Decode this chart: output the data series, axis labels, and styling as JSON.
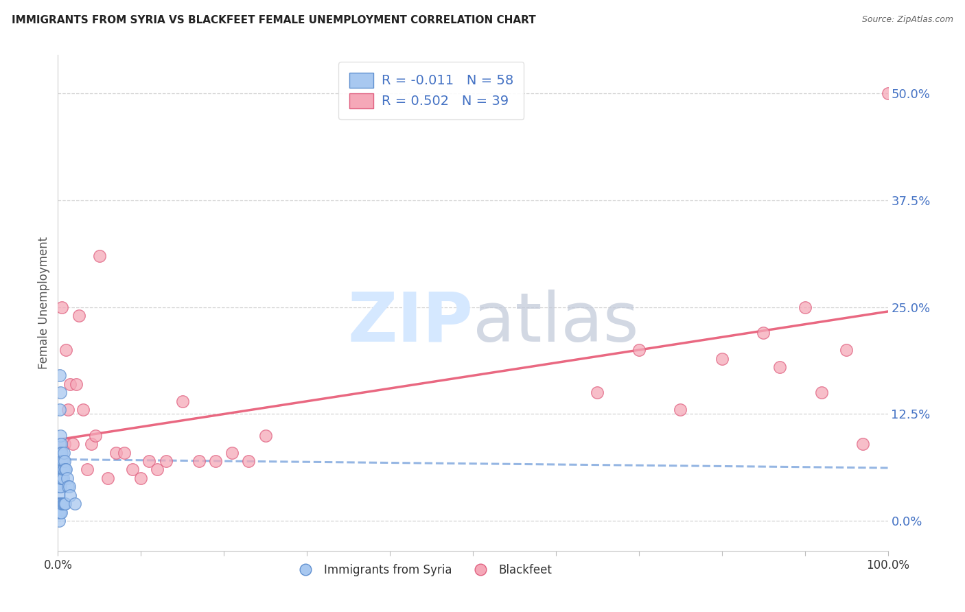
{
  "title": "IMMIGRANTS FROM SYRIA VS BLACKFEET FEMALE UNEMPLOYMENT CORRELATION CHART",
  "source": "Source: ZipAtlas.com",
  "ylabel": "Female Unemployment",
  "ytick_labels": [
    "0.0%",
    "12.5%",
    "25.0%",
    "37.5%",
    "50.0%"
  ],
  "ytick_values": [
    0.0,
    0.125,
    0.25,
    0.375,
    0.5
  ],
  "xlim": [
    0.0,
    1.0
  ],
  "ylim": [
    -0.035,
    0.545
  ],
  "legend_label1": "Immigrants from Syria",
  "legend_label2": "Blackfeet",
  "color_blue": "#A8C8F0",
  "color_pink": "#F5A8B8",
  "color_blue_edge": "#6090D0",
  "color_pink_edge": "#E06080",
  "color_blue_line": "#8AAEE0",
  "color_pink_line": "#E8607A",
  "background_color": "#FFFFFF",
  "watermark_color": "#D5E8FF",
  "syria_R": -0.011,
  "syria_N": 58,
  "blackfeet_R": 0.502,
  "blackfeet_N": 39,
  "syria_x": [
    0.001,
    0.001,
    0.001,
    0.001,
    0.001,
    0.001,
    0.001,
    0.001,
    0.001,
    0.001,
    0.002,
    0.002,
    0.002,
    0.002,
    0.002,
    0.002,
    0.002,
    0.002,
    0.002,
    0.002,
    0.003,
    0.003,
    0.003,
    0.003,
    0.003,
    0.003,
    0.003,
    0.003,
    0.003,
    0.004,
    0.004,
    0.004,
    0.004,
    0.004,
    0.004,
    0.004,
    0.005,
    0.005,
    0.005,
    0.005,
    0.005,
    0.006,
    0.006,
    0.006,
    0.006,
    0.007,
    0.007,
    0.007,
    0.008,
    0.008,
    0.009,
    0.009,
    0.01,
    0.011,
    0.012,
    0.014,
    0.015,
    0.02
  ],
  "syria_y": [
    0.07,
    0.06,
    0.05,
    0.04,
    0.03,
    0.02,
    0.02,
    0.01,
    0.01,
    0.0,
    0.17,
    0.13,
    0.09,
    0.08,
    0.07,
    0.06,
    0.05,
    0.04,
    0.02,
    0.01,
    0.15,
    0.1,
    0.08,
    0.07,
    0.06,
    0.05,
    0.04,
    0.02,
    0.01,
    0.09,
    0.08,
    0.07,
    0.06,
    0.05,
    0.02,
    0.01,
    0.08,
    0.07,
    0.06,
    0.05,
    0.02,
    0.07,
    0.06,
    0.05,
    0.02,
    0.08,
    0.06,
    0.02,
    0.07,
    0.02,
    0.06,
    0.02,
    0.06,
    0.05,
    0.04,
    0.04,
    0.03,
    0.02
  ],
  "blackfeet_x": [
    0.003,
    0.005,
    0.008,
    0.01,
    0.012,
    0.015,
    0.018,
    0.022,
    0.025,
    0.03,
    0.035,
    0.04,
    0.045,
    0.05,
    0.06,
    0.07,
    0.08,
    0.09,
    0.1,
    0.11,
    0.12,
    0.13,
    0.15,
    0.17,
    0.19,
    0.21,
    0.23,
    0.25,
    0.65,
    0.7,
    0.75,
    0.8,
    0.85,
    0.87,
    0.9,
    0.92,
    0.95,
    0.97,
    1.0
  ],
  "blackfeet_y": [
    0.07,
    0.25,
    0.09,
    0.2,
    0.13,
    0.16,
    0.09,
    0.16,
    0.24,
    0.13,
    0.06,
    0.09,
    0.1,
    0.31,
    0.05,
    0.08,
    0.08,
    0.06,
    0.05,
    0.07,
    0.06,
    0.07,
    0.14,
    0.07,
    0.07,
    0.08,
    0.07,
    0.1,
    0.15,
    0.2,
    0.13,
    0.19,
    0.22,
    0.18,
    0.25,
    0.15,
    0.2,
    0.09,
    0.5
  ],
  "blackfeet_trend_x0": 0.0,
  "blackfeet_trend_y0": 0.095,
  "blackfeet_trend_x1": 1.0,
  "blackfeet_trend_y1": 0.245,
  "syria_trend_x0": 0.0,
  "syria_trend_y0": 0.072,
  "syria_trend_x1": 1.0,
  "syria_trend_y1": 0.062
}
